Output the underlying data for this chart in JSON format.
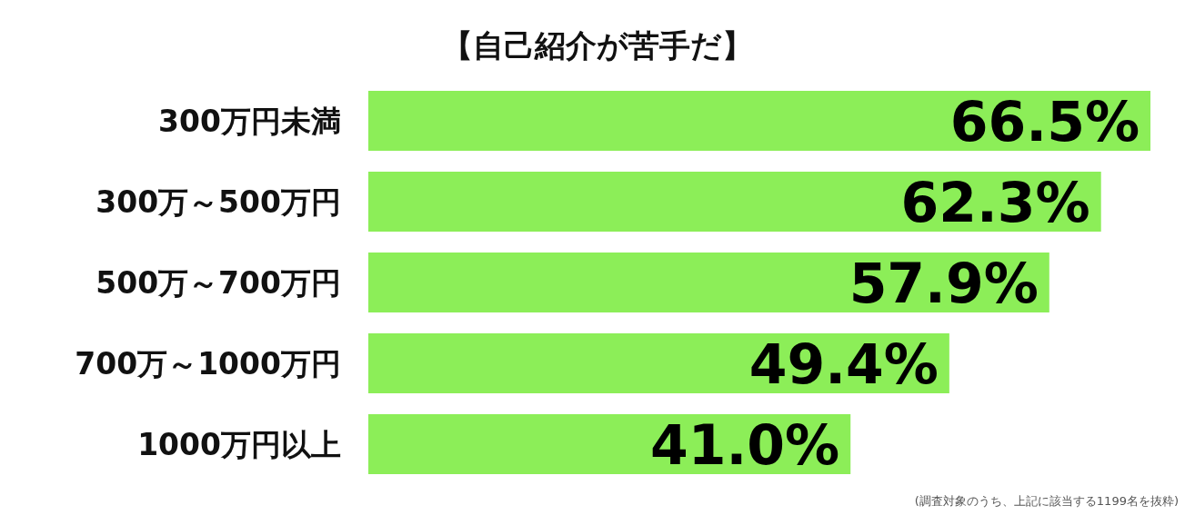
{
  "chart_data": {
    "type": "bar",
    "orientation": "horizontal",
    "title": "【自己紹介が苦手だ】",
    "categories": [
      "300万円未満",
      "300万～500万円",
      "500万～700万円",
      "700万～1000万円",
      "1000万円以上"
    ],
    "values": [
      66.5,
      62.3,
      57.9,
      49.4,
      41.0
    ],
    "value_labels": [
      "66.5%",
      "62.3%",
      "57.9%",
      "49.4%",
      "41.0%"
    ],
    "color": "#8cee58",
    "annotations": [
      "(調査対象のうち、上記に該当する1199名を抜粋)"
    ]
  }
}
